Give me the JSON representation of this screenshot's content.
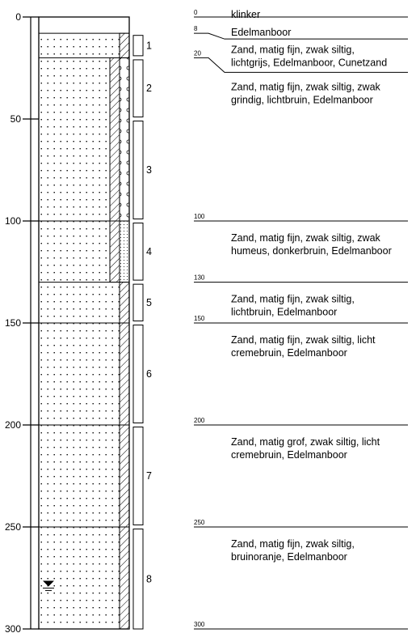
{
  "depth_axis": {
    "ticks": [
      {
        "value": 0,
        "label": "0"
      },
      {
        "value": 50,
        "label": "50"
      },
      {
        "value": 100,
        "label": "100"
      },
      {
        "value": 150,
        "label": "150"
      },
      {
        "value": 200,
        "label": "200"
      },
      {
        "value": 250,
        "label": "250"
      },
      {
        "value": 300,
        "label": "300"
      }
    ]
  },
  "layers": [
    {
      "top": 0,
      "bottom": 8,
      "fill": "none"
    },
    {
      "top": 8,
      "bottom": 20,
      "fill": "sand-dots"
    },
    {
      "top": 20,
      "bottom": 100,
      "fill": "sand-dots"
    },
    {
      "top": 100,
      "bottom": 130,
      "fill": "sand-dots"
    },
    {
      "top": 130,
      "bottom": 150,
      "fill": "sand-dots"
    },
    {
      "top": 150,
      "bottom": 200,
      "fill": "sand-dots"
    },
    {
      "top": 200,
      "bottom": 250,
      "fill": "sand-dots"
    },
    {
      "top": 250,
      "bottom": 300,
      "fill": "sand-dots"
    }
  ],
  "side_columns": [
    {
      "top": 8,
      "bottom": 20,
      "pattern": "hatch"
    },
    {
      "top": 20,
      "bottom": 100,
      "pattern": "hatch-offset"
    },
    {
      "top": 20,
      "bottom": 100,
      "pattern": "gravel-circles"
    },
    {
      "top": 100,
      "bottom": 130,
      "pattern": "hatch-offset"
    },
    {
      "top": 100,
      "bottom": 130,
      "pattern": "fine-dots"
    },
    {
      "top": 130,
      "bottom": 300,
      "pattern": "hatch"
    }
  ],
  "samples": [
    {
      "label": "1",
      "top": 9,
      "bottom": 19
    },
    {
      "label": "2",
      "top": 21,
      "bottom": 49
    },
    {
      "label": "3",
      "top": 51,
      "bottom": 99
    },
    {
      "label": "4",
      "top": 101,
      "bottom": 129
    },
    {
      "label": "5",
      "top": 131,
      "bottom": 149
    },
    {
      "label": "6",
      "top": 151,
      "bottom": 199
    },
    {
      "label": "7",
      "top": 201,
      "bottom": 249
    },
    {
      "label": "8",
      "top": 251,
      "bottom": 300
    }
  ],
  "groundwater": {
    "depth": 278,
    "symbol": "groundwater-level"
  },
  "boundaries": [
    {
      "depth": 0,
      "label": "0"
    },
    {
      "depth": 8,
      "label": "8"
    },
    {
      "depth": 20,
      "label": "20"
    },
    {
      "depth": 100,
      "label": "100"
    },
    {
      "depth": 130,
      "label": "130"
    },
    {
      "depth": 150,
      "label": "150"
    },
    {
      "depth": 200,
      "label": "200"
    },
    {
      "depth": 250,
      "label": "250"
    },
    {
      "depth": 300,
      "label": "300"
    }
  ],
  "descriptions": [
    {
      "lines": [
        "klinker"
      ]
    },
    {
      "lines": [
        "Edelmanboor"
      ]
    },
    {
      "lines": [
        "Zand, matig fijn, zwak siltig,",
        "lichtgrijs, Edelmanboor, Cunetzand"
      ]
    },
    {
      "lines": [
        "Zand, matig fijn, zwak siltig, zwak",
        "grindig, lichtbruin, Edelmanboor"
      ]
    },
    {
      "lines": [
        "Zand, matig fijn, zwak siltig, zwak",
        "humeus, donkerbruin, Edelmanboor"
      ]
    },
    {
      "lines": [
        "Zand, matig fijn, zwak siltig,",
        "lichtbruin, Edelmanboor"
      ]
    },
    {
      "lines": [
        "Zand, matig fijn, zwak siltig, licht",
        "cremebruin, Edelmanboor"
      ]
    },
    {
      "lines": [
        "Zand, matig grof, zwak siltig, licht",
        "cremebruin, Edelmanboor"
      ]
    },
    {
      "lines": [
        "Zand, matig fijn, zwak siltig,",
        "bruinoranje, Edelmanboor"
      ]
    }
  ]
}
